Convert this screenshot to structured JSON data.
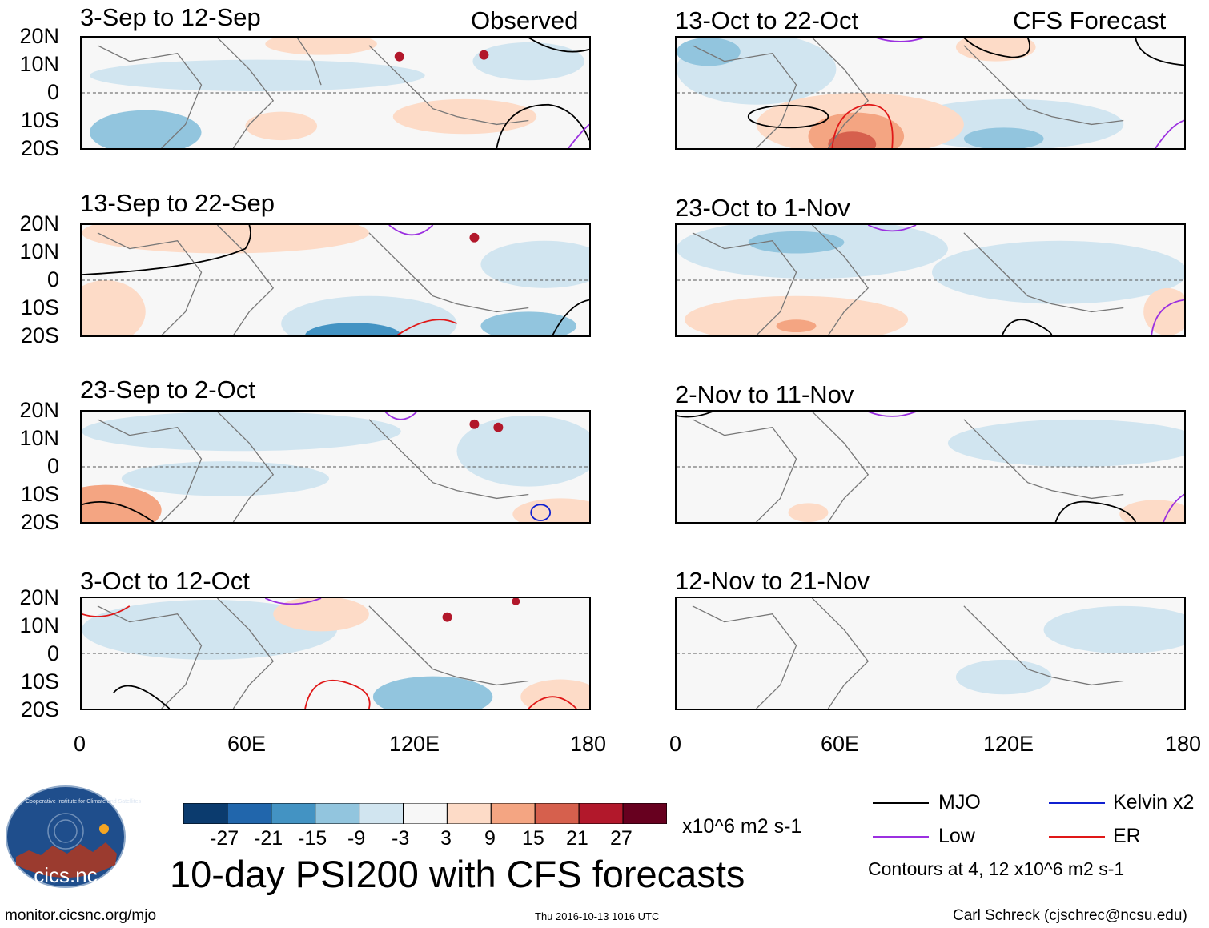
{
  "main_title": "10-day PSI200 with CFS forecasts",
  "observed_label": "Observed",
  "forecast_label": "CFS Forecast",
  "panels_left": [
    {
      "period": "3-Sep to 12-Sep"
    },
    {
      "period": "13-Sep to 22-Sep"
    },
    {
      "period": "23-Sep to 2-Oct"
    },
    {
      "period": "3-Oct to 12-Oct"
    }
  ],
  "panels_right": [
    {
      "period": "13-Oct to 22-Oct"
    },
    {
      "period": "23-Oct to 1-Nov"
    },
    {
      "period": "2-Nov to 11-Nov"
    },
    {
      "period": "12-Nov to 21-Nov"
    }
  ],
  "lat_labels": [
    "20N",
    "10N",
    "0",
    "10S",
    "20S"
  ],
  "lon_labels": [
    "0",
    "60E",
    "120E",
    "180"
  ],
  "colorbar": {
    "colors": [
      "#0b3b6e",
      "#2166ac",
      "#4393c3",
      "#92c5de",
      "#d1e5f0",
      "#f7f7f7",
      "#fddbc7",
      "#f4a582",
      "#d6604d",
      "#b2182b",
      "#67001f"
    ],
    "labels": [
      "-27",
      "-21",
      "-15",
      "-9",
      "-3",
      "3",
      "9",
      "15",
      "21",
      "27"
    ],
    "units": "x10^6 m2 s-1"
  },
  "legend": {
    "mjo": {
      "label": "MJO",
      "color": "#000000"
    },
    "kelvin": {
      "label": "Kelvin x2",
      "color": "#1020d0"
    },
    "low": {
      "label": "Low",
      "color": "#9b30e0"
    },
    "er": {
      "label": "ER",
      "color": "#e01818"
    },
    "contours_note": "Contours at 4, 12 x10^6 m2 s-1"
  },
  "logo_text": "cics.nc",
  "logo_ring_text": "Cooperative Institute for Climate and Satellites",
  "footer_left": "monitor.cicsnc.org/mjo",
  "footer_center": "Thu 2016-10-13 1016 UTC",
  "footer_right": "Carl Schreck (cjschrec@ncsu.edu)"
}
